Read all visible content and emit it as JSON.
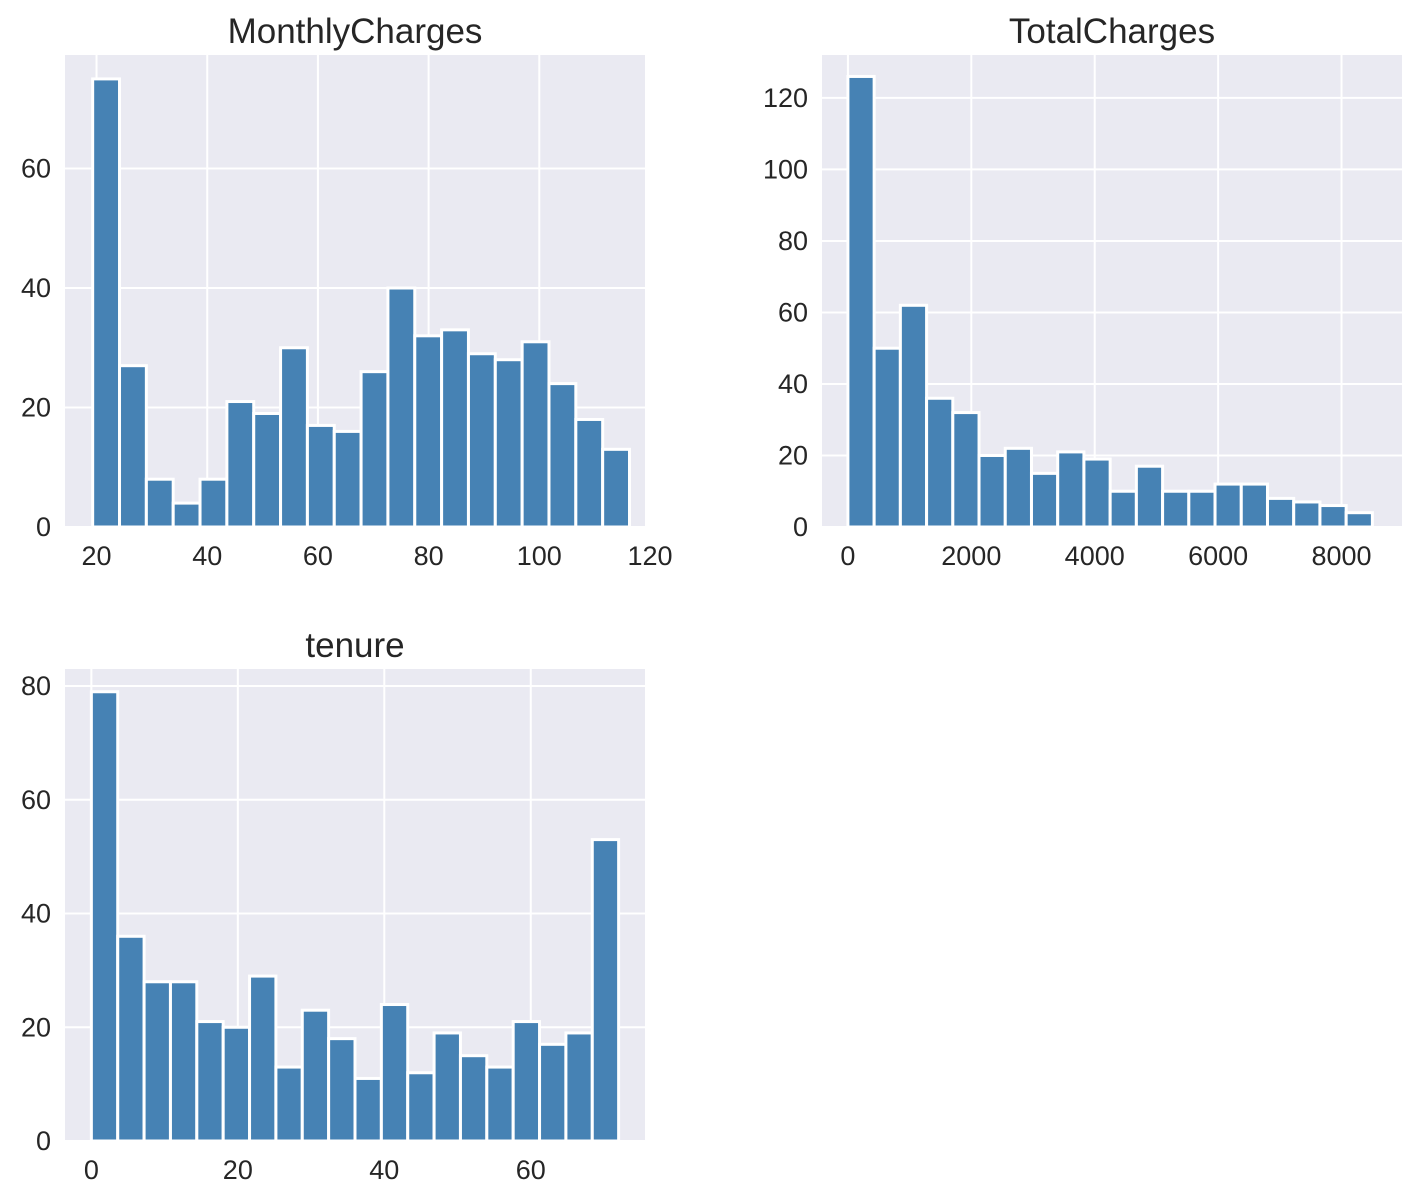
{
  "chart_data": [
    {
      "type": "bar",
      "title": "MonthlyCharges",
      "xlabel": "",
      "ylabel": "",
      "bar_color": "#4682B4",
      "grid": true,
      "xlim": [
        14.3,
        119.1
      ],
      "ylim": [
        0,
        79
      ],
      "xticks": [
        20,
        40,
        60,
        80,
        100,
        120
      ],
      "yticks": [
        0,
        20,
        40,
        60
      ],
      "bin_start": 19.3,
      "bin_width": 4.85,
      "values": [
        75,
        27,
        8,
        4,
        8,
        21,
        19,
        30,
        17,
        16,
        26,
        40,
        32,
        33,
        29,
        28,
        31,
        24,
        18,
        13
      ]
    },
    {
      "type": "bar",
      "title": "TotalCharges",
      "xlabel": "",
      "ylabel": "",
      "bar_color": "#4682B4",
      "grid": true,
      "xlim": [
        -420,
        8980
      ],
      "ylim": [
        0,
        132
      ],
      "xticks": [
        0,
        2000,
        4000,
        6000,
        8000
      ],
      "yticks": [
        0,
        20,
        40,
        60,
        80,
        100,
        120
      ],
      "bin_start": 0,
      "bin_width": 425,
      "values": [
        126,
        50,
        62,
        36,
        32,
        20,
        22,
        15,
        21,
        19,
        10,
        17,
        10,
        10,
        12,
        12,
        8,
        7,
        6,
        4
      ]
    },
    {
      "type": "bar",
      "title": "tenure",
      "xlabel": "",
      "ylabel": "",
      "bar_color": "#4682B4",
      "grid": true,
      "xlim": [
        -3.6,
        75.6
      ],
      "ylim": [
        0,
        83
      ],
      "xticks": [
        0,
        20,
        40,
        60
      ],
      "yticks": [
        0,
        20,
        40,
        60,
        80
      ],
      "bin_start": 0,
      "bin_width": 3.6,
      "values": [
        79,
        36,
        28,
        28,
        21,
        20,
        29,
        13,
        23,
        18,
        11,
        24,
        12,
        19,
        15,
        13,
        21,
        17,
        19,
        53
      ]
    }
  ]
}
